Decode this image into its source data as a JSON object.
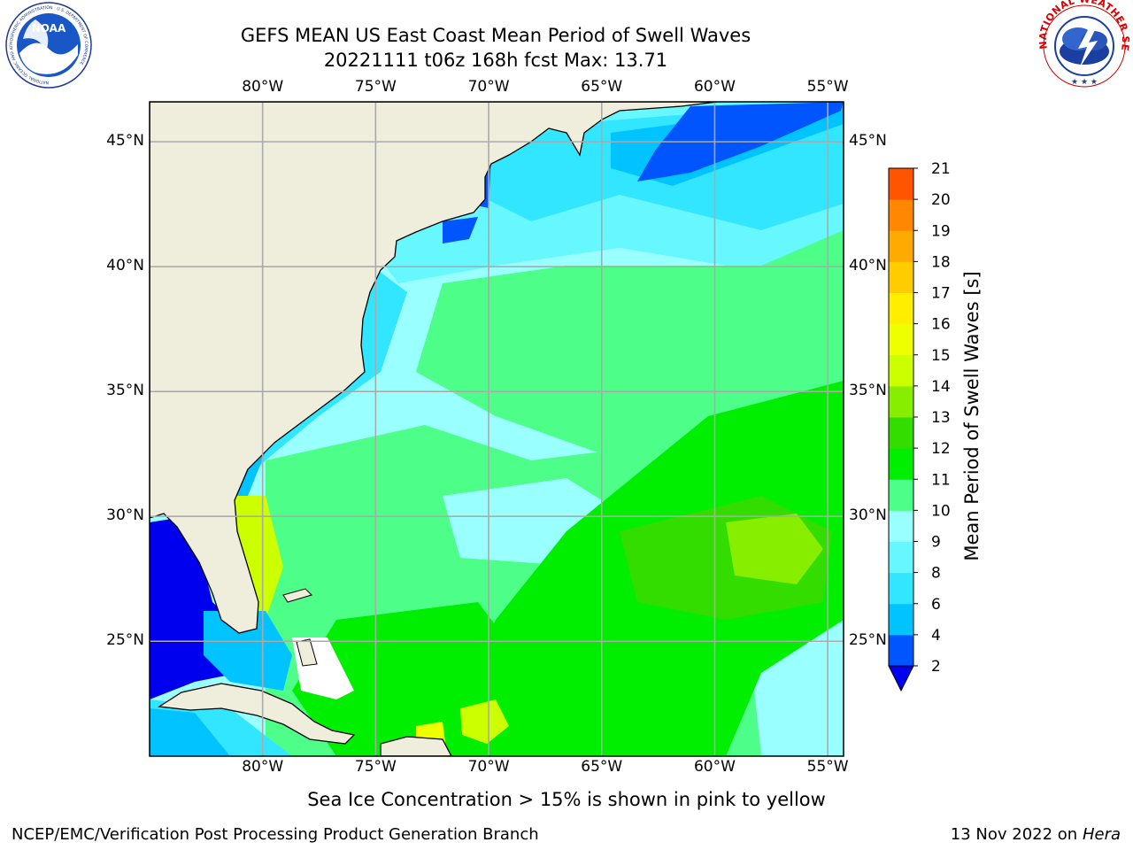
{
  "header": {
    "title_line1": "GEFS MEAN US East Coast Mean Period of Swell Waves",
    "title_line2": "20221111 t06z 168h fcst   Max: 13.71"
  },
  "logos": {
    "left": {
      "text": "NOAA",
      "ring_text": "NATIONAL OCEANIC AND ATMOSPHERIC ADMINISTRATION · U.S. DEPARTMENT OF COMMERCE"
    },
    "right": {
      "ring_text": "NATIONAL WEATHER SERVICE"
    }
  },
  "map": {
    "lon_ticks": [
      "80°W",
      "75°W",
      "70°W",
      "65°W",
      "60°W",
      "55°W"
    ],
    "lat_ticks": [
      "45°N",
      "40°N",
      "35°N",
      "30°N",
      "25°N"
    ],
    "lon_values": [
      -80,
      -75,
      -70,
      -65,
      -60,
      -55
    ],
    "lat_values": [
      45,
      40,
      35,
      30,
      25
    ],
    "extent": {
      "lon": [
        -85,
        -54.3
      ],
      "lat": [
        20.4,
        46.6
      ]
    }
  },
  "colorbar": {
    "label": "Mean Period of Swell Waves [s]",
    "ticks": [
      "2",
      "4",
      "6",
      "8",
      "9",
      "10",
      "11",
      "12",
      "13",
      "14",
      "15",
      "16",
      "17",
      "18",
      "19",
      "20",
      "21"
    ],
    "colors": [
      "#0055ff",
      "#00c3ff",
      "#33e6ff",
      "#66f7ff",
      "#99ffff",
      "#4dff88",
      "#00ee00",
      "#33dd00",
      "#88ee00",
      "#ccff00",
      "#eeff00",
      "#ffee00",
      "#ffcc00",
      "#ffaa00",
      "#ff8800",
      "#ff5500",
      "#ff2200",
      "#ff0000"
    ],
    "extend_color": "#0000ee"
  },
  "footer": {
    "note": "Sea Ice Concentration > 15% is shown in pink to yellow",
    "credit": "NCEP/EMC/Verification Post Processing Product Generation Branch",
    "date": "13 Nov 2022 on",
    "machine": "Hera"
  }
}
